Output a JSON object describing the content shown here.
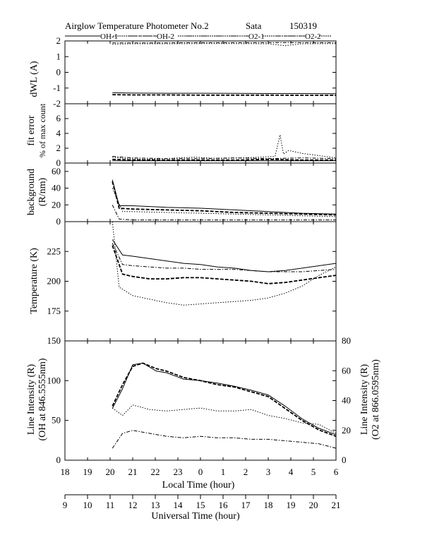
{
  "header": {
    "title": "Airglow Temperature Photometer No.2",
    "station": "Sata",
    "date": "150319"
  },
  "legend": [
    {
      "name": "OH-1",
      "style": "solid"
    },
    {
      "name": "OH-2",
      "style": "dashed"
    },
    {
      "name": "O2-1",
      "style": "dotted"
    },
    {
      "name": "O2-2",
      "style": "dashdot"
    }
  ],
  "colors": {
    "ink": "#000000",
    "background": "#ffffff"
  },
  "chart_data": [
    {
      "type": "line",
      "panel": "dwl",
      "ylabel": "dWL (A)",
      "ylim": [
        -2,
        2
      ],
      "yticks": [
        "2",
        "1",
        "0",
        "-1",
        "-2"
      ],
      "series": [
        {
          "name": "OH-1",
          "x": [
            19.4,
            20,
            21,
            22,
            23,
            0,
            1,
            2,
            3,
            4,
            4.8,
            5.0,
            5.3
          ],
          "y": [
            -1.3,
            -1.32,
            -1.33,
            -1.33,
            -1.34,
            -1.35,
            -1.35,
            -1.36,
            -1.36,
            -1.37,
            -1.38,
            -1.55,
            -1.45
          ]
        },
        {
          "name": "OH-2",
          "x": [
            19.4,
            20,
            21,
            22,
            23,
            0,
            1,
            2,
            3,
            4,
            4.8,
            5.0,
            5.3
          ],
          "y": [
            -1.42,
            -1.44,
            -1.44,
            -1.45,
            -1.45,
            -1.45,
            -1.46,
            -1.46,
            -1.46,
            -1.47,
            -1.48,
            -1.6,
            -1.5
          ]
        },
        {
          "name": "O2-1",
          "x": [
            19.4,
            20,
            21,
            22,
            23,
            0,
            0.5,
            1,
            2,
            3,
            4,
            5,
            5.3
          ],
          "y": [
            1.8,
            1.82,
            1.82,
            1.83,
            1.83,
            1.82,
            1.7,
            1.82,
            1.83,
            1.83,
            1.84,
            1.83,
            1.83
          ]
        },
        {
          "name": "O2-2",
          "x": [
            19.4,
            20,
            21,
            22,
            23,
            0,
            1,
            2,
            3,
            4,
            5,
            5.3
          ],
          "y": [
            1.88,
            1.88,
            1.88,
            1.89,
            1.89,
            1.89,
            1.89,
            1.89,
            1.9,
            1.9,
            1.9,
            1.9
          ]
        }
      ]
    },
    {
      "type": "line",
      "panel": "fit_error",
      "ylabel": "fit error",
      "ylabel2": "% of max count",
      "ylim": [
        0,
        8
      ],
      "yticks": [
        "6",
        "4",
        "2",
        "0"
      ],
      "series": [
        {
          "name": "OH-1",
          "x": [
            19.4,
            20,
            21,
            22,
            23,
            0,
            1,
            2,
            3,
            4,
            5,
            5.3
          ],
          "y": [
            0.3,
            0.3,
            0.3,
            0.3,
            0.3,
            0.3,
            0.3,
            0.3,
            0.3,
            0.3,
            0.3,
            0.3
          ]
        },
        {
          "name": "OH-2",
          "x": [
            19.4,
            20,
            21,
            22,
            23,
            0,
            1,
            2,
            3,
            4,
            5,
            5.3
          ],
          "y": [
            0.5,
            0.4,
            0.4,
            0.4,
            0.4,
            0.5,
            0.4,
            0.4,
            0.4,
            0.5,
            0.4,
            0.6
          ]
        },
        {
          "name": "O2-1",
          "x": [
            19.4,
            19.8,
            20.4,
            21,
            21.8,
            22.5,
            23.2,
            23.8,
            0.2,
            0.35,
            0.45,
            0.6,
            1,
            1.5,
            2,
            2.5,
            3,
            3.5,
            4,
            4.5,
            5,
            5.3
          ],
          "y": [
            0.8,
            0.6,
            0.5,
            0.6,
            0.8,
            0.6,
            0.7,
            0.8,
            0.9,
            3.8,
            1.2,
            1.7,
            1.3,
            1.0,
            0.7,
            0.8,
            0.6,
            0.5,
            0.6,
            0.5,
            0.6,
            1.9
          ]
        },
        {
          "name": "O2-2",
          "x": [
            19.4,
            20,
            21,
            22,
            23,
            0,
            1,
            2,
            3,
            4,
            5,
            5.3
          ],
          "y": [
            0.9,
            0.7,
            0.6,
            0.6,
            0.7,
            0.6,
            0.7,
            0.6,
            0.5,
            0.6,
            0.5,
            0.5
          ]
        }
      ]
    },
    {
      "type": "line",
      "panel": "background",
      "ylabel": "background",
      "ylabel2": "(R/nm)",
      "ylim": [
        0,
        70
      ],
      "yticks": [
        "60",
        "40",
        "20",
        "0"
      ],
      "series": [
        {
          "name": "OH-1",
          "x": [
            19.4,
            19.6,
            20,
            21,
            22,
            23,
            0,
            1,
            2,
            3,
            4,
            4.5,
            5,
            5.3
          ],
          "y": [
            50,
            19,
            19,
            17,
            16,
            14,
            12,
            10,
            9,
            10,
            10,
            11,
            14,
            12
          ]
        },
        {
          "name": "OH-2",
          "x": [
            19.4,
            19.6,
            20,
            21,
            22,
            23,
            0,
            1,
            2,
            3,
            4,
            4.5,
            5,
            5.3
          ],
          "y": [
            48,
            16,
            15,
            14,
            13,
            11,
            10,
            9,
            8,
            9,
            9,
            10,
            15,
            10
          ]
        },
        {
          "name": "O2-1",
          "x": [
            19.4,
            19.7,
            20,
            21,
            22,
            23,
            0,
            1,
            2,
            3,
            4,
            4.5,
            5,
            5.3
          ],
          "y": [
            40,
            12,
            12,
            11,
            10,
            9,
            8,
            7,
            6,
            7,
            8,
            12,
            10,
            8
          ]
        },
        {
          "name": "O2-2",
          "x": [
            19.4,
            19.6,
            20,
            21,
            22,
            23,
            0,
            1,
            2,
            3,
            4,
            4.5,
            5,
            5.3
          ],
          "y": [
            20,
            3,
            2,
            2,
            2,
            2,
            2,
            2,
            2,
            3,
            3,
            5,
            18,
            3
          ]
        }
      ]
    },
    {
      "type": "line",
      "panel": "temperature",
      "ylabel": "Temperature (K)",
      "ylim": [
        150,
        250
      ],
      "yticks": [
        "225",
        "200",
        "175"
      ],
      "series": [
        {
          "name": "OH-1",
          "x": [
            19.4,
            19.7,
            20,
            20.5,
            21,
            21.5,
            22,
            22.5,
            23,
            23.5,
            0,
            0.5,
            1,
            1.5,
            2,
            2.5,
            3,
            3.5,
            4,
            4.5,
            4.8,
            5.0,
            5.3
          ],
          "y": [
            235,
            222,
            221,
            219,
            217,
            215,
            214,
            212,
            211,
            209,
            208,
            209,
            211,
            213,
            215,
            218,
            220,
            222,
            224,
            226,
            228,
            228,
            230
          ]
        },
        {
          "name": "OH-2",
          "x": [
            19.4,
            19.7,
            20,
            20.5,
            21,
            21.5,
            22,
            22.5,
            23,
            23.5,
            0,
            0.5,
            1,
            1.5,
            2,
            2.5,
            3,
            3.5,
            4,
            4.5,
            4.8,
            5.0,
            5.3
          ],
          "y": [
            230,
            206,
            204,
            202,
            202,
            203,
            203,
            202,
            201,
            200,
            198,
            199,
            201,
            203,
            205,
            207,
            209,
            210,
            212,
            215,
            222,
            224,
            226
          ]
        },
        {
          "name": "O2-1",
          "x": [
            19.4,
            19.6,
            20,
            20.5,
            21,
            21.5,
            22,
            22.5,
            23,
            23.5,
            0,
            0.5,
            1,
            1.5,
            2,
            2.5,
            3,
            3.5,
            4,
            4.5,
            4.8,
            5.0,
            5.3
          ],
          "y": [
            250,
            195,
            188,
            185,
            182,
            180,
            181,
            182,
            183,
            184,
            186,
            190,
            196,
            205,
            212,
            220,
            228,
            233,
            236,
            240,
            242,
            248,
            244
          ]
        },
        {
          "name": "O2-2",
          "x": [
            19.4,
            19.7,
            20,
            20.5,
            21,
            21.5,
            22,
            22.5,
            23,
            23.5,
            0,
            0.5,
            1,
            1.5,
            2,
            2.5,
            3,
            3.5,
            4,
            4.5,
            4.8,
            5.0,
            5.3
          ],
          "y": [
            232,
            214,
            213,
            212,
            211,
            211,
            210,
            210,
            210,
            209,
            208,
            208,
            208,
            209,
            210,
            211,
            212,
            214,
            218,
            222,
            238,
            242,
            236
          ]
        }
      ]
    },
    {
      "type": "line",
      "panel": "intensity",
      "xlabel": "Local Time (hour)",
      "x2label": "Universal Time (hour)",
      "ylabel": "Line Intensity (R)",
      "ylabel2": "(OH at 846.5555nm)",
      "yrlabel": "Line Intensity (R)",
      "yrlabel2": "(O2 at 866.0595nm)",
      "ylim": [
        0,
        150
      ],
      "yrlim": [
        0,
        80
      ],
      "yticks": [
        "150",
        "100",
        "50",
        "0"
      ],
      "yrticks": [
        "80",
        "60",
        "40",
        "20",
        "0"
      ],
      "xticks": [
        "18",
        "19",
        "20",
        "21",
        "22",
        "23",
        "0",
        "1",
        "2",
        "3",
        "4",
        "5",
        "6"
      ],
      "x2ticks": [
        "9",
        "10",
        "11",
        "12",
        "13",
        "14",
        "15",
        "16",
        "17",
        "18",
        "19",
        "20",
        "21"
      ],
      "series": [
        {
          "name": "OH-1",
          "axis": "left",
          "x": [
            19.4,
            19.7,
            20,
            20.3,
            20.7,
            21,
            21.5,
            22,
            22.5,
            23,
            23.5,
            0,
            0.5,
            1,
            1.5,
            2,
            2.5,
            3,
            3.5,
            4,
            4.5,
            5,
            5.3
          ],
          "y": [
            65,
            90,
            120,
            122,
            112,
            110,
            102,
            100,
            97,
            93,
            88,
            82,
            68,
            52,
            40,
            32,
            36,
            38,
            35,
            30,
            25,
            18,
            20
          ]
        },
        {
          "name": "OH-2",
          "axis": "left",
          "x": [
            19.4,
            19.7,
            20,
            20.3,
            20.7,
            21,
            21.5,
            22,
            22.5,
            23,
            23.5,
            0,
            0.5,
            1,
            1.5,
            2,
            2.5,
            3,
            3.5,
            4,
            4.5,
            5,
            5.3
          ],
          "y": [
            68,
            95,
            118,
            122,
            115,
            112,
            104,
            100,
            95,
            92,
            86,
            80,
            65,
            50,
            38,
            30,
            34,
            36,
            33,
            28,
            22,
            16,
            18
          ]
        },
        {
          "name": "O2-1",
          "axis": "right",
          "x": [
            19.4,
            19.7,
            20,
            20.5,
            21,
            21.5,
            22,
            22.5,
            23,
            23.5,
            0,
            0.5,
            1,
            1.5,
            2,
            2.5,
            3,
            3.5,
            4,
            4.5,
            5,
            5.3
          ],
          "y": [
            35,
            30,
            37,
            34,
            33,
            34,
            35,
            33,
            33,
            34,
            30,
            28,
            25,
            24,
            18,
            16,
            24,
            18,
            22,
            20,
            12,
            14
          ]
        },
        {
          "name": "O2-2",
          "axis": "right",
          "x": [
            19.4,
            19.7,
            20,
            20.5,
            21,
            21.5,
            22,
            22.5,
            23,
            23.5,
            0,
            0.5,
            1,
            1.5,
            2,
            2.5,
            3,
            3.5,
            4,
            4.5,
            5,
            5.3
          ],
          "y": [
            8,
            18,
            20,
            18,
            16,
            15,
            16,
            15,
            15,
            14,
            14,
            13,
            12,
            11,
            8,
            8,
            10,
            8,
            9,
            8,
            6,
            7
          ]
        }
      ]
    }
  ]
}
